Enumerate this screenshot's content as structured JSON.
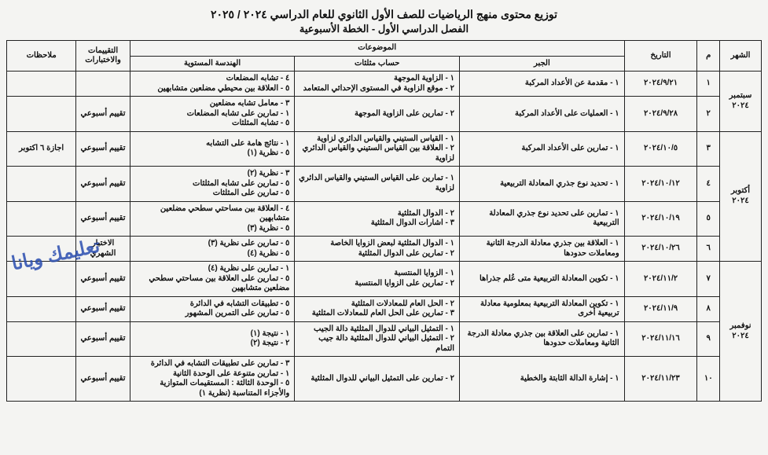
{
  "title1": "توزيع محتوى منهج الرياضيات للصف الأول الثانوي للعام الدراسي ٢٠٢٤ / ٢٠٢٥",
  "title2": "الفصل الدراسي الأول - الخطة الأسبوعية",
  "watermark": "تعليمك ويانا",
  "cols": {
    "month": "الشهر",
    "idx": "م",
    "date": "التاريخ",
    "topics": "الموضوعات",
    "algebra": "الجبر",
    "trig": "حساب مثلثات",
    "geometry": "الهندسة المستوية",
    "assess": "التقييمات والاختبارات",
    "notes": "ملاحظات"
  },
  "widths": {
    "month": 48,
    "idx": 26,
    "date": 84,
    "algebra": 190,
    "trig": 190,
    "geometry": 190,
    "assess": 62,
    "notes": 80
  },
  "months": {
    "sep": "سبتمبر ٢٠٢٤",
    "oct": "أكتوبر ٢٠٢٤",
    "nov": "نوفمبر ٢٠٢٤"
  },
  "rows": [
    {
      "month_key": "sep",
      "idx": "١",
      "date": "٢٠٢٤/٩/٢١",
      "algebra": "١ - مقدمة عن الأعداد المركبة",
      "trig": "١ - الزاوية الموجهة\n٢ - موقع الزاوية في المستوى الإحداثي المتعامد",
      "geometry": "٤ - تشابه المضلعات\n٥ - العلاقة بين محيطي مضلعين متشابهين",
      "assess": "",
      "notes": ""
    },
    {
      "idx": "٢",
      "date": "٢٠٢٤/٩/٢٨",
      "algebra": "١ - العمليات على الأعداد المركبة",
      "trig": "٢ - تمارين على الزاوية الموجهة",
      "geometry": "٣ - معامل تشابه مضلعين\n١ - تمارين على تشابه المضلعات\n٥ - تشابه المثلثات",
      "assess": "تقييم أسبوعي",
      "notes": ""
    },
    {
      "month_key": "oct",
      "idx": "٣",
      "date": "٢٠٢٤/١٠/٥",
      "algebra": "١ - تمارين على الأعداد المركبة",
      "trig": "١ - القياس الستيني والقياس الدائري لزاوية\n٢ - العلاقة بين القياس الستيني والقياس الدائري لزاوية",
      "geometry": "١ - نتائج هامة على التشابه\n٥ - نظرية (١)",
      "assess": "تقييم أسبوعي",
      "notes": "اجازة ٦ اكتوبر"
    },
    {
      "idx": "٤",
      "date": "٢٠٢٤/١٠/١٢",
      "algebra": "١ - تحديد نوع جذري المعادلة التربيعية",
      "trig": "١ - تمارين على القياس الستيني والقياس الدائري لزاوية",
      "geometry": "٣ - نظرية (٢)\n٥ - تمارين على تشابه المثلثات\n٥ - تمارين على المثلثات",
      "assess": "تقييم أسبوعي",
      "notes": ""
    },
    {
      "idx": "٥",
      "date": "٢٠٢٤/١٠/١٩",
      "algebra": "١ - تمارين على تحديد نوع جذري المعادلة التربيعية",
      "trig": "٢ - الدوال المثلثية\n٣ - اشارات الدوال المثلثية",
      "geometry": "٤ - العلاقة بين مساحتي سطحي مضلعين متشابهين\n٥ - نظرية (٣)",
      "assess": "تقييم أسبوعي",
      "notes": ""
    },
    {
      "idx": "٦",
      "date": "٢٠٢٤/١٠/٢٦",
      "algebra": "١ - العلاقة بين جذري معادلة الدرجة الثانية ومعاملات حدودها",
      "trig": "١ - الدوال المثلثية لبعض الزوايا الخاصة\n٢ - تمارين على الدوال المثلثية",
      "geometry": "٥ - تمارين على نظرية (٣)\n٥ - نظرية (٤)",
      "assess": "الاختبار الشهري",
      "notes": ""
    },
    {
      "month_key": "nov",
      "idx": "٧",
      "date": "٢٠٢٤/١١/٢",
      "algebra": "١ - تكوين المعادلة التربيعية متى عُلم جذراها",
      "trig": "١ - الزوايا المنتسبة\n٢ - تمارين على الزوايا المنتسبة",
      "geometry": "١ - تمارين على نظرية (٤)\n٥ - تمارين على العلاقة بين مساحتي سطحي مضلعين متشابهين",
      "assess": "تقييم أسبوعي",
      "notes": ""
    },
    {
      "idx": "٨",
      "date": "٢٠٢٤/١١/٩",
      "algebra": "١ - تكوين المعادلة التربيعية بمعلومية معادلة تربيعية أخرى",
      "trig": "٢ - الحل العام للمعادلات المثلثية\n٣ - تمارين على الحل العام للمعادلات المثلثية",
      "geometry": "٥ - تطبيقات التشابه في الدائرة\n٥ - تمارين على التمرين المشهور",
      "assess": "تقييم أسبوعي",
      "notes": ""
    },
    {
      "idx": "٩",
      "date": "٢٠٢٤/١١/١٦",
      "algebra": "١ - تمارين على العلاقة بين جذري معادلة الدرجة الثانية ومعاملات حدودها",
      "trig": "١ - التمثيل البياني للدوال المثلثية دالة الجيب\n٢ - التمثيل البياني للدوال المثلثية دالة جيب التمام",
      "geometry": "١ - نتيجة (١)\n٢ - نتيجة (٢)",
      "assess": "تقييم أسبوعي",
      "notes": ""
    },
    {
      "idx": "١٠",
      "date": "٢٠٢٤/١١/٢٣",
      "algebra": "١ - إشارة الدالة الثابتة والخطية",
      "trig": "٢ - تمارين على التمثيل البياني للدوال المثلثية",
      "geometry": "٣ - تمارين على تطبيقات التشابه في الدائرة\n١ - تمارين متنوعة على الوحدة الثانية\n٥ - الوحدة الثالثة : المستقيمات المتوازية والأجزاء المتناسبة (نظرية ١)",
      "assess": "تقييم أسبوعي",
      "notes": ""
    }
  ]
}
